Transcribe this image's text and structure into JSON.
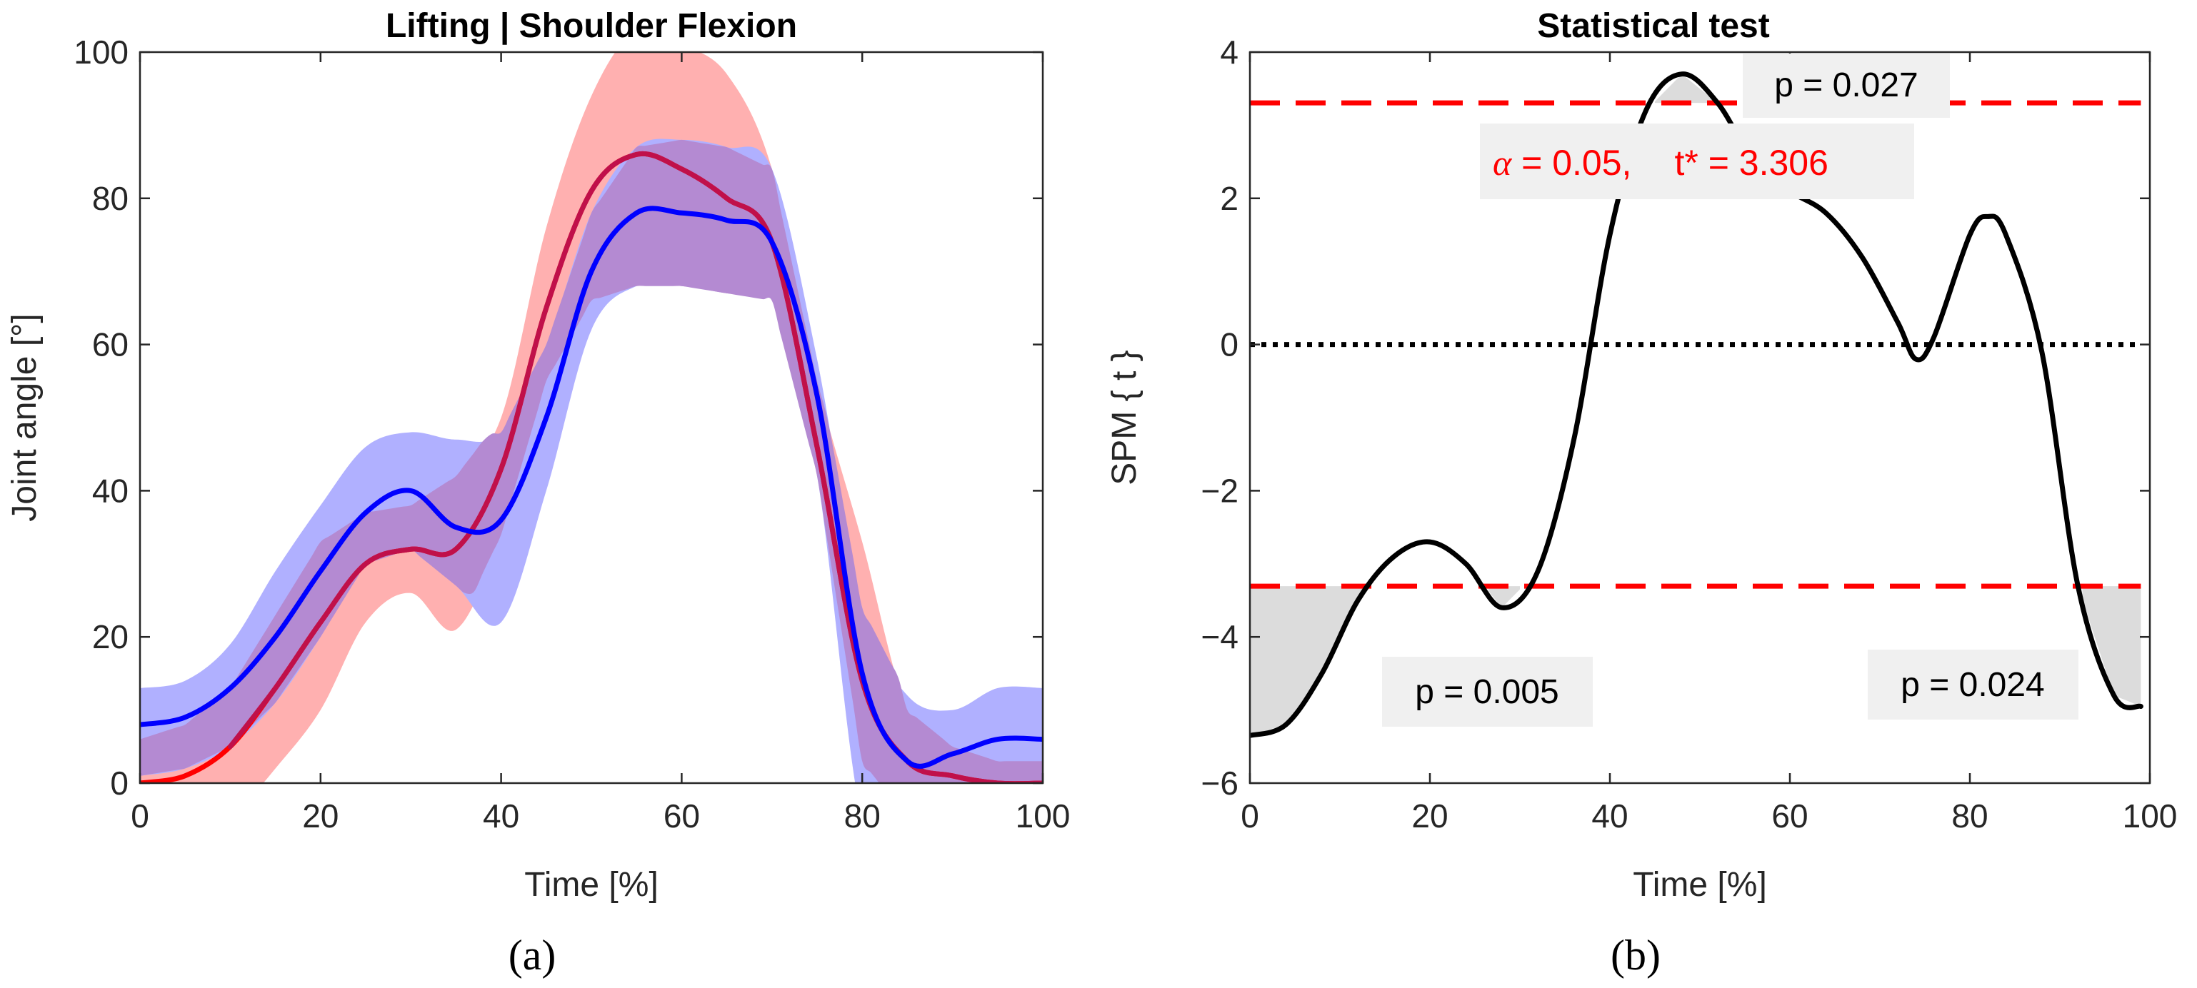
{
  "colors": {
    "axis": "#262626",
    "red": "#ff0000",
    "red_band": "#ffb0b0",
    "blue": "#0000ff",
    "blue_band": "#b0b0ff",
    "purple_line": "#c0104a",
    "overlap_band": "#b48ad2",
    "spm_line": "#000000",
    "threshold": "#ff0000",
    "cluster_fill": "#dcdcdc",
    "annotation_box": "#f0f0f0"
  },
  "chart_data": [
    {
      "type": "line",
      "panel_label": "(a)",
      "title": "Lifting | Shoulder Flexion",
      "xlabel": "Time [%]",
      "ylabel": "Joint angle [°]",
      "xlim": [
        0,
        100
      ],
      "ylim": [
        0,
        100
      ],
      "xticks": [
        "0",
        "20",
        "40",
        "60",
        "80",
        "100"
      ],
      "yticks": [
        "0",
        "20",
        "40",
        "60",
        "80",
        "100"
      ],
      "grid": false,
      "series": [
        {
          "name": "red",
          "x": [
            0,
            5,
            10,
            15,
            20,
            25,
            30,
            35,
            40,
            45,
            50,
            55,
            60,
            65,
            70,
            75,
            80,
            85,
            90,
            95,
            100
          ],
          "mean": [
            0,
            1,
            5,
            13,
            22,
            30,
            32,
            32,
            43,
            65,
            81,
            86,
            84,
            80,
            74,
            46,
            14,
            3,
            1,
            0,
            0
          ],
          "lower": [
            -10,
            -10,
            -5,
            2,
            10,
            22,
            26,
            21,
            34,
            55,
            66,
            68,
            68,
            67,
            66,
            42,
            3,
            -5,
            -5,
            -5,
            -5
          ],
          "upper": [
            6,
            8,
            13,
            23,
            33,
            37,
            38,
            42,
            50,
            76,
            94,
            103,
            101,
            97,
            84,
            55,
            33,
            10,
            5,
            3,
            3
          ]
        },
        {
          "name": "blue",
          "x": [
            0,
            5,
            10,
            15,
            20,
            25,
            30,
            35,
            40,
            45,
            50,
            55,
            60,
            65,
            70,
            75,
            80,
            85,
            90,
            95,
            100
          ],
          "mean": [
            8,
            9,
            13,
            20,
            29,
            37,
            40,
            35,
            36,
            50,
            70,
            78,
            78,
            77,
            74,
            53,
            15,
            3,
            4,
            6,
            6
          ],
          "lower": [
            1,
            2,
            5,
            11,
            20,
            30,
            32,
            27,
            22,
            40,
            62,
            68,
            68,
            67,
            66,
            42,
            -5,
            -5,
            -5,
            0,
            0
          ],
          "upper": [
            13,
            14,
            19,
            29,
            38,
            46,
            48,
            47,
            48,
            60,
            78,
            87,
            88,
            87,
            84,
            58,
            24,
            12,
            10,
            13,
            13
          ]
        }
      ]
    },
    {
      "type": "line",
      "panel_label": "(b)",
      "title": "Statistical test",
      "xlabel": "Time [%]",
      "ylabel": "SPM { t }",
      "xlim": [
        0,
        100
      ],
      "ylim": [
        -6,
        4
      ],
      "xticks": [
        "0",
        "20",
        "40",
        "60",
        "80",
        "100"
      ],
      "yticks": [
        "4",
        "2",
        "0",
        "−2",
        "−4",
        "−6"
      ],
      "grid": false,
      "threshold": 3.306,
      "alpha": 0.05,
      "spm": {
        "x": [
          0,
          4,
          8,
          12,
          16,
          20,
          24,
          28,
          32,
          36,
          40,
          44,
          48,
          52,
          56,
          60,
          64,
          68,
          72,
          74,
          76,
          80,
          82,
          84,
          88,
          92,
          96,
          99
        ],
        "t": [
          -5.35,
          -5.2,
          -4.5,
          -3.5,
          -2.9,
          -2.7,
          -3.0,
          -3.6,
          -3.1,
          -1.3,
          1.5,
          3.2,
          3.7,
          3.3,
          2.5,
          2.1,
          1.8,
          1.2,
          0.3,
          -0.2,
          0.1,
          1.5,
          1.75,
          1.5,
          -0.1,
          -3.3,
          -4.8,
          -4.95
        ]
      },
      "annotations": [
        {
          "text": "p = 0.027",
          "x": 48,
          "y": 3.5
        },
        {
          "text": "p = 0.005",
          "x": 20,
          "y": -4.75
        },
        {
          "text": "p = 0.024",
          "x": 86,
          "y": -4.7
        }
      ],
      "threshold_label": {
        "alpha_symbol": "α",
        "alpha_text": " = 0.05,",
        "t_text": "t* = 3.306"
      }
    }
  ]
}
